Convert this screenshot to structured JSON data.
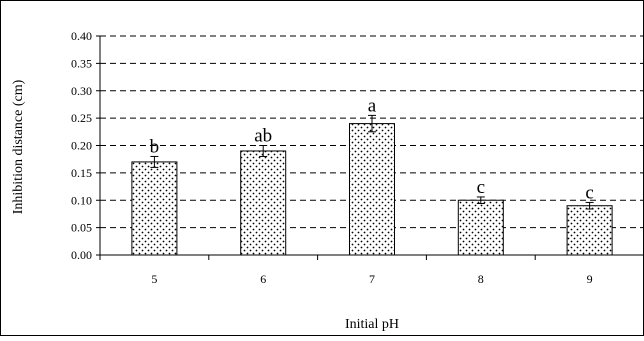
{
  "chart_data": {
    "type": "bar",
    "title": "",
    "xlabel": "Initial pH",
    "ylabel": "Inhibition distance (cm)",
    "ylim": [
      0,
      0.4
    ],
    "yticks": [
      "0.00",
      "0.05",
      "0.10",
      "0.15",
      "0.20",
      "0.25",
      "0.30",
      "0.35",
      "0.40"
    ],
    "grid": "dashed horizontal",
    "bar_fill": "dotted",
    "categories": [
      "5",
      "6",
      "7",
      "8",
      "9"
    ],
    "values": [
      0.17,
      0.19,
      0.24,
      0.1,
      0.09
    ],
    "errors": [
      0.01,
      0.01,
      0.015,
      0.006,
      0.006
    ],
    "significance_labels": [
      "b",
      "ab",
      "a",
      "c",
      "c"
    ]
  }
}
